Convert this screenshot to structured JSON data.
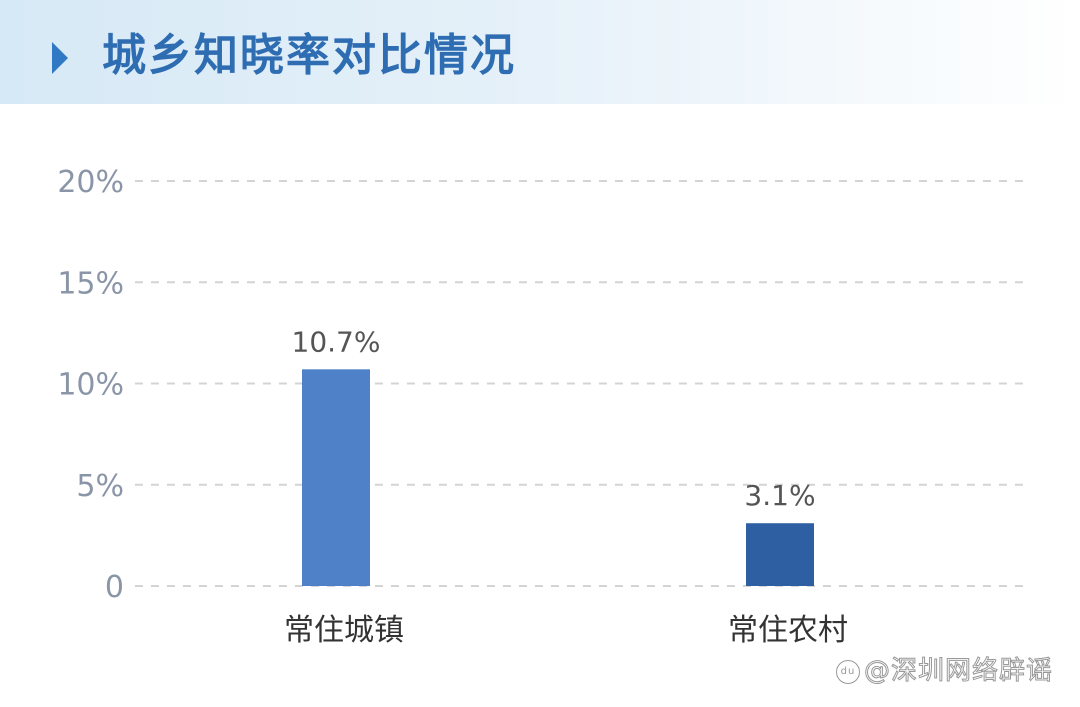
{
  "header": {
    "title": "城乡知晓率对比情况"
  },
  "watermark": {
    "logo": "du",
    "text": "@深圳网络辟谣"
  },
  "chart_data": {
    "type": "bar",
    "title": "城乡知晓率对比情况",
    "categories": [
      "常住城镇",
      "常住农村"
    ],
    "values": [
      10.7,
      3.1
    ],
    "data_labels": [
      "10.7%",
      "3.1%"
    ],
    "colors": [
      "#4f81c9",
      "#2f5fa3"
    ],
    "ylim": [
      0,
      20
    ],
    "yticks": [
      0,
      5,
      10,
      15,
      20
    ],
    "ytick_labels": [
      "0",
      "5%",
      "10%",
      "15%",
      "20%"
    ],
    "grid": "dashed horizontal",
    "xlabel": "",
    "ylabel": ""
  }
}
